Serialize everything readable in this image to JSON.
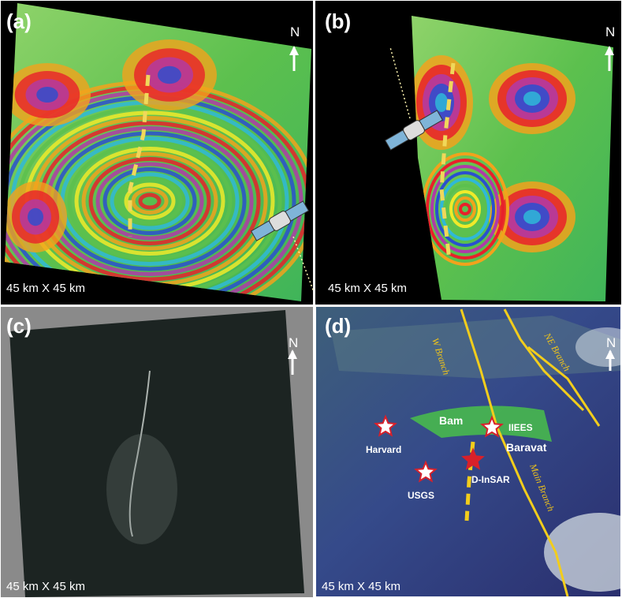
{
  "panels": [
    {
      "label": "(a)",
      "north": "N",
      "scale": "45 km X 45 km"
    },
    {
      "label": "(b)",
      "north": "N",
      "scale": "45 km X 45 km"
    },
    {
      "label": "(c)",
      "north": "N",
      "scale": "45 km X 45 km"
    },
    {
      "label": "(d)",
      "north": "N",
      "scale": "45 km X 45 km"
    }
  ],
  "map_labels": {
    "places": [
      "Bam",
      "Baravat"
    ],
    "epicenters": [
      "Harvard",
      "USGS",
      "IIEES",
      "D-InSAR"
    ],
    "faults": [
      "NE Branch",
      "W Branch",
      "Main Branch"
    ]
  }
}
